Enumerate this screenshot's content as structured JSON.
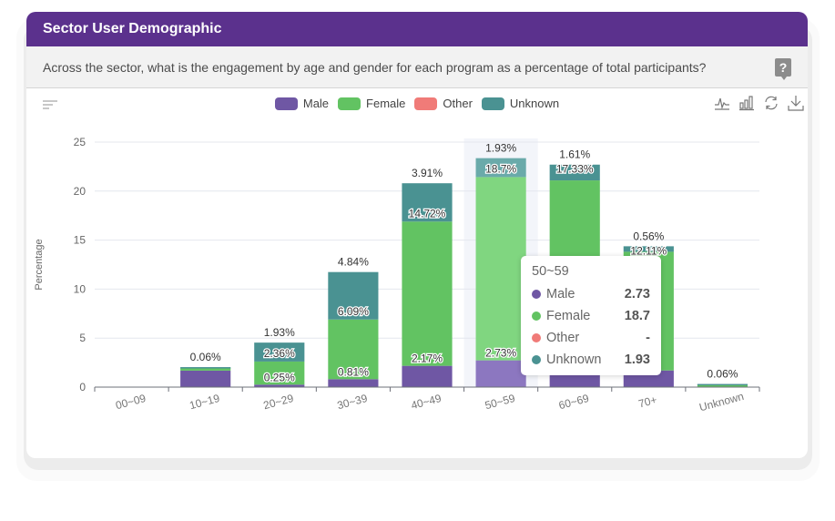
{
  "card": {
    "title": "Sector User Demographic",
    "question": "Across the sector, what is the engagement by age and gender for each program as a percentage of total participants?",
    "help_icon_label": "?"
  },
  "colors": {
    "header_bg": "#5b318d",
    "male": "#6f57a4",
    "female": "#62c362",
    "other": "#f07b78",
    "unknown": "#4a9292",
    "male_highlight": "#8c77c0",
    "female_highlight": "#80d680",
    "unknown_highlight": "#6aaaaa"
  },
  "toolbar": {
    "tools": [
      "line-chart-icon",
      "bar-chart-icon",
      "refresh-icon",
      "download-icon"
    ]
  },
  "chart_data": {
    "type": "bar",
    "stacked": true,
    "title": "",
    "xlabel": "",
    "ylabel": "Percentage",
    "ylim": [
      0,
      25
    ],
    "yticks": [
      0,
      5,
      10,
      15,
      20,
      25
    ],
    "grid": true,
    "legend_position": "top-center",
    "categories": [
      "00~09",
      "10~19",
      "20~29",
      "30~39",
      "40~49",
      "50~59",
      "60~69",
      "70+",
      "Unknown"
    ],
    "series": [
      {
        "name": "Male",
        "color": "#6f57a4",
        "values": [
          0,
          1.68,
          0.25,
          0.81,
          2.17,
          2.73,
          3.76,
          1.7,
          0
        ]
      },
      {
        "name": "Female",
        "color": "#62c362",
        "values": [
          0,
          0.3,
          2.36,
          6.09,
          14.72,
          18.7,
          17.33,
          12.11,
          0.26
        ]
      },
      {
        "name": "Other",
        "color": "#f07b78",
        "values": [
          0,
          0,
          0,
          0,
          0,
          0,
          0,
          0,
          0
        ]
      },
      {
        "name": "Unknown",
        "color": "#4a9292",
        "values": [
          0,
          0.06,
          1.93,
          4.84,
          3.91,
          1.93,
          1.61,
          0.56,
          0.06
        ]
      }
    ],
    "data_labels": [
      {
        "category": "10~19",
        "labels": [
          "0.06%"
        ]
      },
      {
        "category": "20~29",
        "labels": [
          "0.25%",
          "2.36%",
          "1.93%"
        ]
      },
      {
        "category": "30~39",
        "labels": [
          "0.81%",
          "6.09%",
          "4.84%"
        ]
      },
      {
        "category": "40~49",
        "labels": [
          "2.17%",
          "14.72%",
          "3.91%"
        ]
      },
      {
        "category": "50~59",
        "labels": [
          "2.73%",
          "18.7%",
          "1.93%"
        ]
      },
      {
        "category": "60~69",
        "labels": [
          "17.33%",
          "1.61%"
        ]
      },
      {
        "category": "70+",
        "labels": [
          "12.11%",
          "0.56%"
        ]
      },
      {
        "category": "Unknown",
        "labels": [
          "0.06%"
        ]
      }
    ],
    "highlighted_category": "50~59"
  },
  "tooltip": {
    "title": "50~59",
    "rows": [
      {
        "name": "Male",
        "value": "2.73",
        "color": "#6f57a4"
      },
      {
        "name": "Female",
        "value": "18.7",
        "color": "#62c362"
      },
      {
        "name": "Other",
        "value": "-",
        "color": "#f07b78"
      },
      {
        "name": "Unknown",
        "value": "1.93",
        "color": "#4a9292"
      }
    ]
  }
}
